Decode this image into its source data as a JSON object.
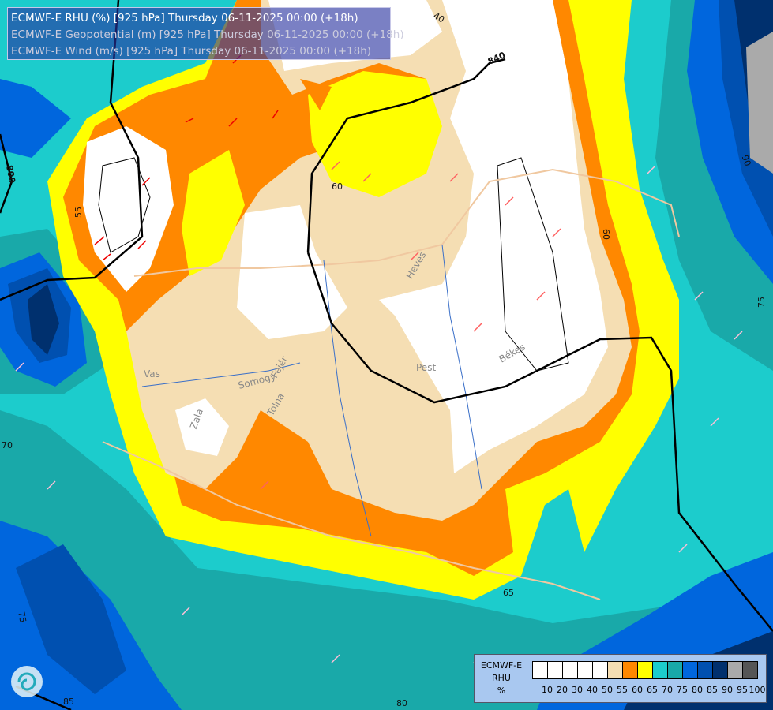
{
  "title": {
    "lines": [
      "ECMWF-E RHU (%) [925 hPa] Thursday 06-11-2025 00:00 (+18h)",
      "ECMWF-E Geopotential (m) [925 hPa] Thursday 06-11-2025 00:00 (+18h)",
      "ECMWF-E Wind (m/s) [925 hPa] Thursday 06-11-2025 00:00 (+18h)"
    ]
  },
  "legend": {
    "model": "ECMWF-E",
    "variable": "RHU",
    "unit": "%",
    "colors": [
      "#ffffff",
      "#ffffff",
      "#ffffff",
      "#ffffff",
      "#ffffff",
      "#f5deb3",
      "#ff8800",
      "#ffff00",
      "#1ccccc",
      "#19a9a9",
      "#0066dd",
      "#0050b0",
      "#00306e",
      "#aaaaaa",
      "#555555"
    ],
    "ticks": [
      "10",
      "20",
      "30",
      "40",
      "50",
      "55",
      "60",
      "65",
      "70",
      "75",
      "80",
      "85",
      "90",
      "95",
      "100"
    ]
  },
  "map": {
    "regions": [
      "Vas",
      "Zala",
      "Somogy",
      "Tolna",
      "Fejér",
      "Pest",
      "Heves",
      "Békés"
    ],
    "geopotential_labels": [
      "840",
      "800"
    ],
    "rhu_labels": [
      "40",
      "55",
      "60",
      "60",
      "65",
      "70",
      "75",
      "75",
      "80",
      "85",
      "90"
    ]
  }
}
